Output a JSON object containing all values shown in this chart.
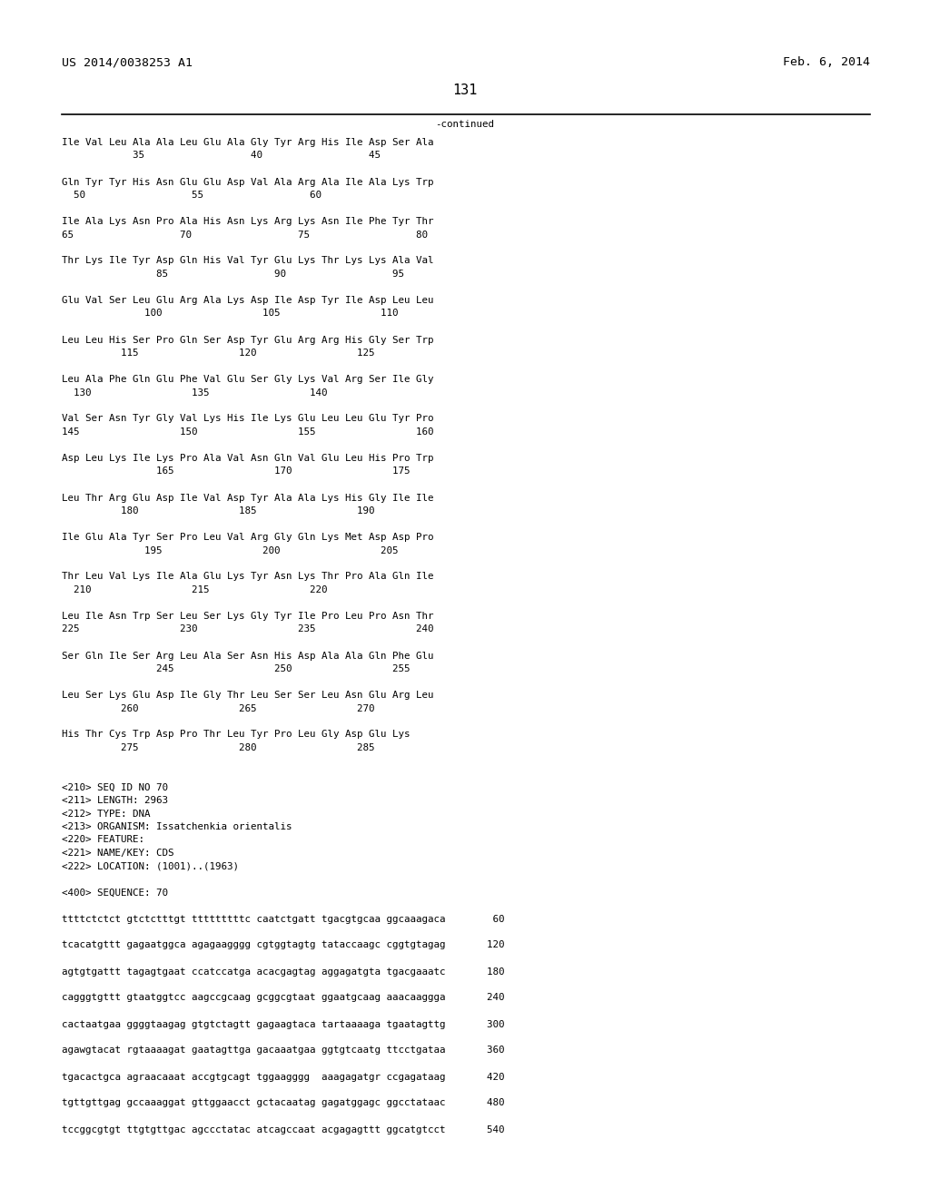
{
  "header_left": "US 2014/0038253 A1",
  "header_right": "Feb. 6, 2014",
  "page_number": "131",
  "continued_label": "-continued",
  "background_color": "#ffffff",
  "text_color": "#000000",
  "font_size": 7.8,
  "header_font_size": 9.5,
  "page_num_font_size": 11,
  "sequence_lines": [
    "Ile Val Leu Ala Ala Leu Glu Ala Gly Tyr Arg His Ile Asp Ser Ala",
    "            35                  40                  45",
    "",
    "Gln Tyr Tyr His Asn Glu Glu Asp Val Ala Arg Ala Ile Ala Lys Trp",
    "  50                  55                  60",
    "",
    "Ile Ala Lys Asn Pro Ala His Asn Lys Arg Lys Asn Ile Phe Tyr Thr",
    "65                  70                  75                  80",
    "",
    "Thr Lys Ile Tyr Asp Gln His Val Tyr Glu Lys Thr Lys Lys Ala Val",
    "                85                  90                  95",
    "",
    "Glu Val Ser Leu Glu Arg Ala Lys Asp Ile Asp Tyr Ile Asp Leu Leu",
    "              100                 105                 110",
    "",
    "Leu Leu His Ser Pro Gln Ser Asp Tyr Glu Arg Arg His Gly Ser Trp",
    "          115                 120                 125",
    "",
    "Leu Ala Phe Gln Glu Phe Val Glu Ser Gly Lys Val Arg Ser Ile Gly",
    "  130                 135                 140",
    "",
    "Val Ser Asn Tyr Gly Val Lys His Ile Lys Glu Leu Leu Glu Tyr Pro",
    "145                 150                 155                 160",
    "",
    "Asp Leu Lys Ile Lys Pro Ala Val Asn Gln Val Glu Leu His Pro Trp",
    "                165                 170                 175",
    "",
    "Leu Thr Arg Glu Asp Ile Val Asp Tyr Ala Ala Lys His Gly Ile Ile",
    "          180                 185                 190",
    "",
    "Ile Glu Ala Tyr Ser Pro Leu Val Arg Gly Gln Lys Met Asp Asp Pro",
    "              195                 200                 205",
    "",
    "Thr Leu Val Lys Ile Ala Glu Lys Tyr Asn Lys Thr Pro Ala Gln Ile",
    "  210                 215                 220",
    "",
    "Leu Ile Asn Trp Ser Leu Ser Lys Gly Tyr Ile Pro Leu Pro Asn Thr",
    "225                 230                 235                 240",
    "",
    "Ser Gln Ile Ser Arg Leu Ala Ser Asn His Asp Ala Ala Gln Phe Glu",
    "                245                 250                 255",
    "",
    "Leu Ser Lys Glu Asp Ile Gly Thr Leu Ser Ser Leu Asn Glu Arg Leu",
    "          260                 265                 270",
    "",
    "His Thr Cys Trp Asp Pro Thr Leu Tyr Pro Leu Gly Asp Glu Lys",
    "          275                 280                 285",
    "",
    "",
    "<210> SEQ ID NO 70",
    "<211> LENGTH: 2963",
    "<212> TYPE: DNA",
    "<213> ORGANISM: Issatchenkia orientalis",
    "<220> FEATURE:",
    "<221> NAME/KEY: CDS",
    "<222> LOCATION: (1001)..(1963)",
    "",
    "<400> SEQUENCE: 70",
    "",
    "ttttctctct gtctctttgt tttttttttc caatctgatt tgacgtgcaa ggcaaagaca        60",
    "",
    "tcacatgttt gagaatggca agagaagggg cgtggtagtg tataccaagc cggtgtagag       120",
    "",
    "agtgtgattt tagagtgaat ccatccatga acacgagtag aggagatgta tgacgaaatc       180",
    "",
    "cagggtgttt gtaatggtcc aagccgcaag gcggcgtaat ggaatgcaag aaacaaggga       240",
    "",
    "cactaatgaa ggggtaagag gtgtctagtt gagaagtaca tartaaaaga tgaatagttg       300",
    "",
    "agawgtacat rgtaaaagat gaatagttga gacaaatgaa ggtgtcaatg ttcctgataa       360",
    "",
    "tgacactgca agraacaaat accgtgcagt tggaagggg  aaagagatgr ccgagataag       420",
    "",
    "tgttgttgag gccaaaggat gttggaacct gctacaatag gagatggagc ggcctataac       480",
    "",
    "tccggcgtgt ttgtgttgac agccctatac atcagccaat acgagagttt ggcatgtcct       540"
  ]
}
